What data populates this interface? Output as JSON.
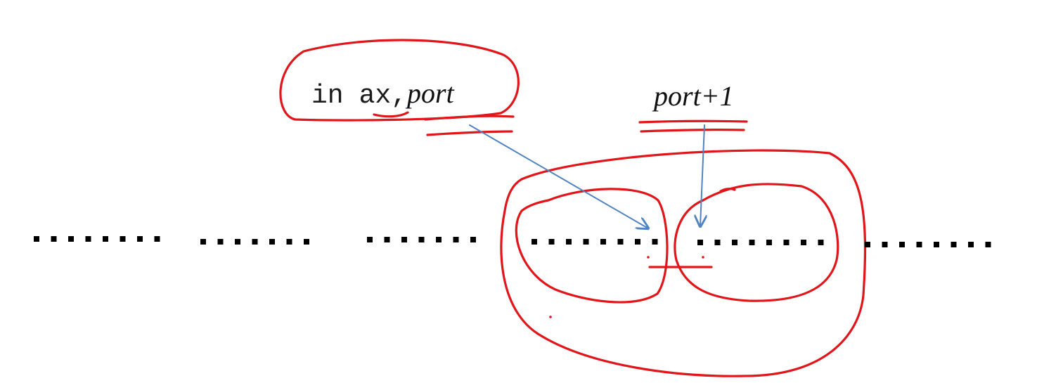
{
  "instruction": {
    "mnemonic": "in",
    "register": "ax,",
    "operand": "port"
  },
  "next_port_label": "port+1",
  "port_rows": [
    {
      "dots": 8
    },
    {
      "dots": 7
    },
    {
      "dots": 7
    },
    {
      "dots": 8
    },
    {
      "dots": 8
    },
    {
      "dots": 8
    }
  ],
  "colors": {
    "annotation_ink": "#e0161b",
    "arrow": "#4f83c2",
    "dots": "#000000"
  }
}
